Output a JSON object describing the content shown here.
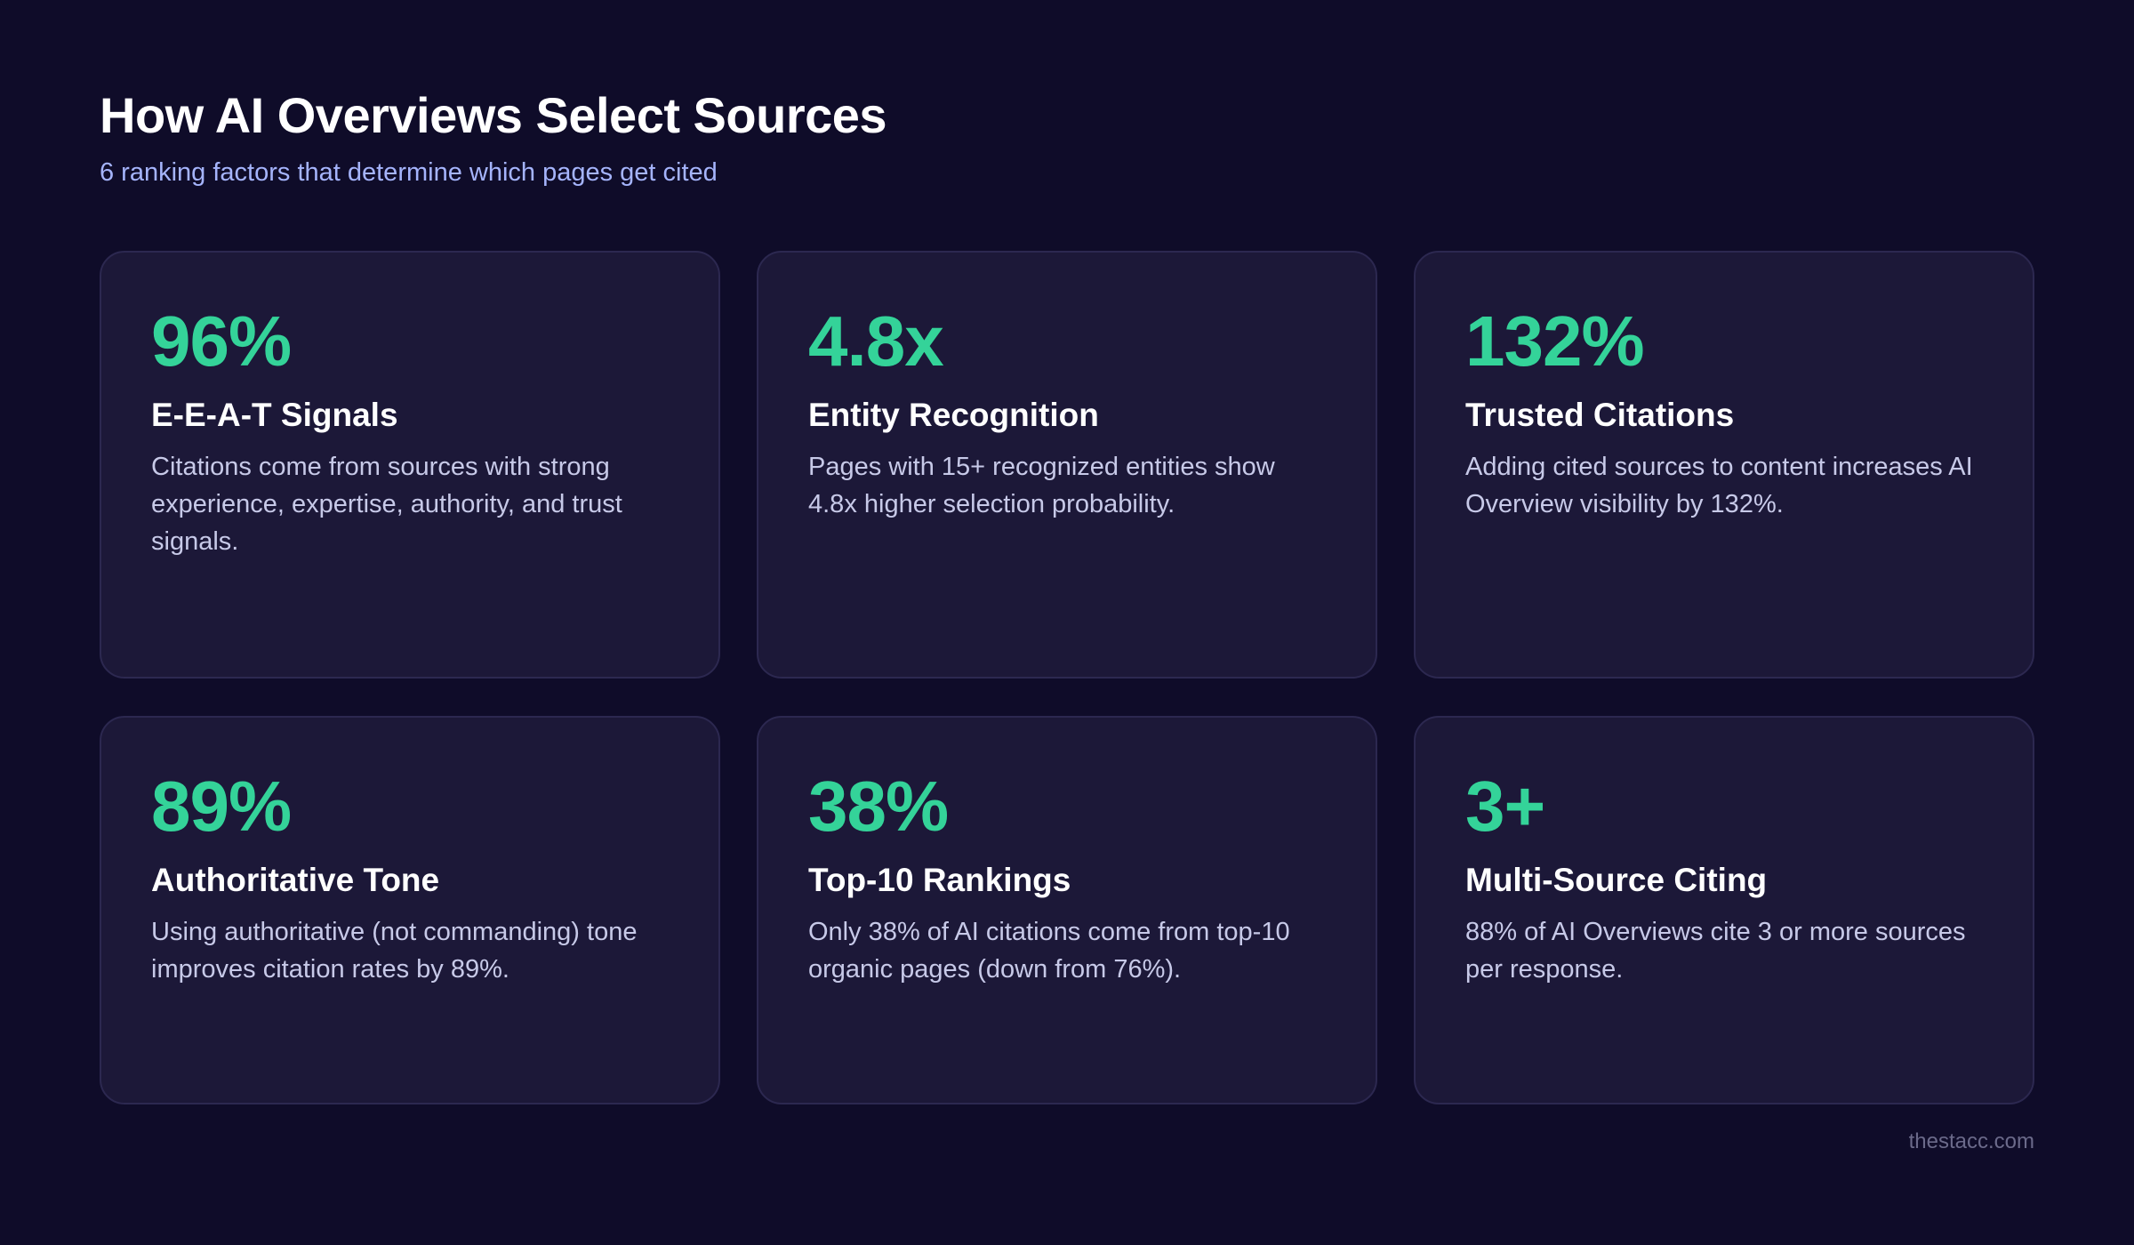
{
  "header": {
    "title": "How AI Overviews Select Sources",
    "subtitle": "6 ranking factors that determine which pages get cited"
  },
  "cards": [
    {
      "stat": "96%",
      "title": "E-E-A-T Signals",
      "description": "Citations come from sources with strong experience, expertise, authority, and trust signals."
    },
    {
      "stat": "4.8x",
      "title": "Entity Recognition",
      "description": "Pages with 15+ recognized entities show 4.8x higher selection probability."
    },
    {
      "stat": "132%",
      "title": "Trusted Citations",
      "description": "Adding cited sources to content increases AI Overview visibility by 132%."
    },
    {
      "stat": "89%",
      "title": "Authoritative Tone",
      "description": "Using authoritative (not commanding) tone improves citation rates by 89%."
    },
    {
      "stat": "38%",
      "title": "Top-10 Rankings",
      "description": "Only 38% of AI citations come from top-10 organic pages (down from 76%)."
    },
    {
      "stat": "3+",
      "title": "Multi-Source Citing",
      "description": "88% of AI Overviews cite 3 or more sources per response."
    }
  ],
  "footer": {
    "source": "thestacc.com"
  },
  "colors": {
    "background": "#0f0c29",
    "card": "#1c1838",
    "accent": "#34d399",
    "subtitle": "#a5b4fc"
  }
}
